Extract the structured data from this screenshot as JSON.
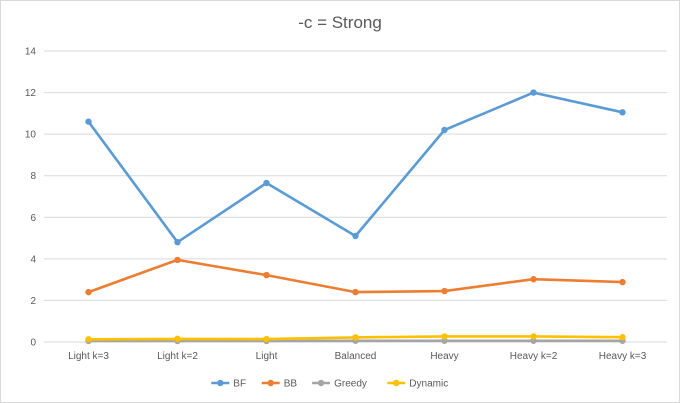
{
  "chart_data": {
    "type": "line",
    "title": "-c = Strong",
    "xlabel": "",
    "ylabel": "",
    "categories": [
      "Light k=3",
      "Light k=2",
      "Light",
      "Balanced",
      "Heavy",
      "Heavy k=2",
      "Heavy k=3"
    ],
    "ylim": [
      0,
      14
    ],
    "yticks": [
      0,
      2,
      4,
      6,
      8,
      10,
      12,
      14
    ],
    "grid": true,
    "legend_position": "bottom",
    "series": [
      {
        "name": "BF",
        "color": "#5b9bd5",
        "values": [
          10.6,
          4.8,
          7.65,
          5.1,
          10.2,
          12.0,
          11.05
        ]
      },
      {
        "name": "BB",
        "color": "#ed7d31",
        "values": [
          2.4,
          3.95,
          3.22,
          2.4,
          2.45,
          3.02,
          2.88
        ]
      },
      {
        "name": "Greedy",
        "color": "#a5a5a5",
        "values": [
          0.05,
          0.05,
          0.05,
          0.06,
          0.06,
          0.06,
          0.06
        ]
      },
      {
        "name": "Dynamic",
        "color": "#ffc000",
        "values": [
          0.13,
          0.15,
          0.14,
          0.22,
          0.27,
          0.27,
          0.23
        ]
      }
    ]
  }
}
